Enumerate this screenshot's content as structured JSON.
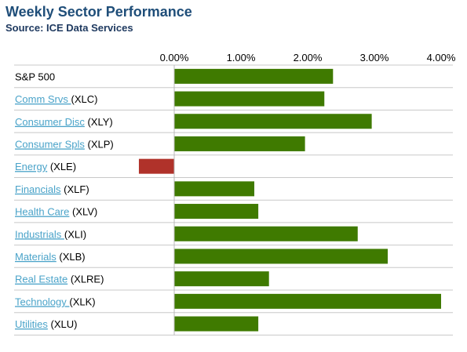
{
  "header": {
    "title": "Weekly Sector Performance",
    "subtitle": "Source: ICE Data Services"
  },
  "colors": {
    "positive": "#3f7a00",
    "negative": "#b0322a",
    "link": "#4aa3c9",
    "title": "#1f4e79",
    "gridline": "#c8c8c8"
  },
  "chart_data": {
    "type": "bar",
    "orientation": "horizontal",
    "x_ticks": [
      "0.00%",
      "1.00%",
      "2.00%",
      "3.00%",
      "4.00%"
    ],
    "xlim": [
      -0.55,
      4.3
    ],
    "rows": [
      {
        "name": "S&P 500",
        "ticker": "",
        "link": false,
        "value": 2.38
      },
      {
        "name": "Comm Srvs ",
        "ticker": "(XLC)",
        "link": true,
        "value": 2.25
      },
      {
        "name": "Consumer Disc",
        "ticker": "(XLY)",
        "link": true,
        "value": 2.96
      },
      {
        "name": "Consumer Spls",
        "ticker": "(XLP)",
        "link": true,
        "value": 1.96
      },
      {
        "name": "Energy",
        "ticker": "(XLE)",
        "link": true,
        "value": -0.53
      },
      {
        "name": "Financials",
        "ticker": "(XLF)",
        "link": true,
        "value": 1.2
      },
      {
        "name": "Health Care",
        "ticker": "(XLV)",
        "link": true,
        "value": 1.26
      },
      {
        "name": "Industrials ",
        "ticker": "(XLI)",
        "link": true,
        "value": 2.75
      },
      {
        "name": "Materials",
        "ticker": "(XLB)",
        "link": true,
        "value": 3.2
      },
      {
        "name": "Real Estate",
        "ticker": "(XLRE)",
        "link": true,
        "value": 1.42
      },
      {
        "name": "Technology ",
        "ticker": "(XLK)",
        "link": true,
        "value": 4.0
      },
      {
        "name": "Utilities",
        "ticker": "(XLU)",
        "link": true,
        "value": 1.26
      }
    ]
  }
}
